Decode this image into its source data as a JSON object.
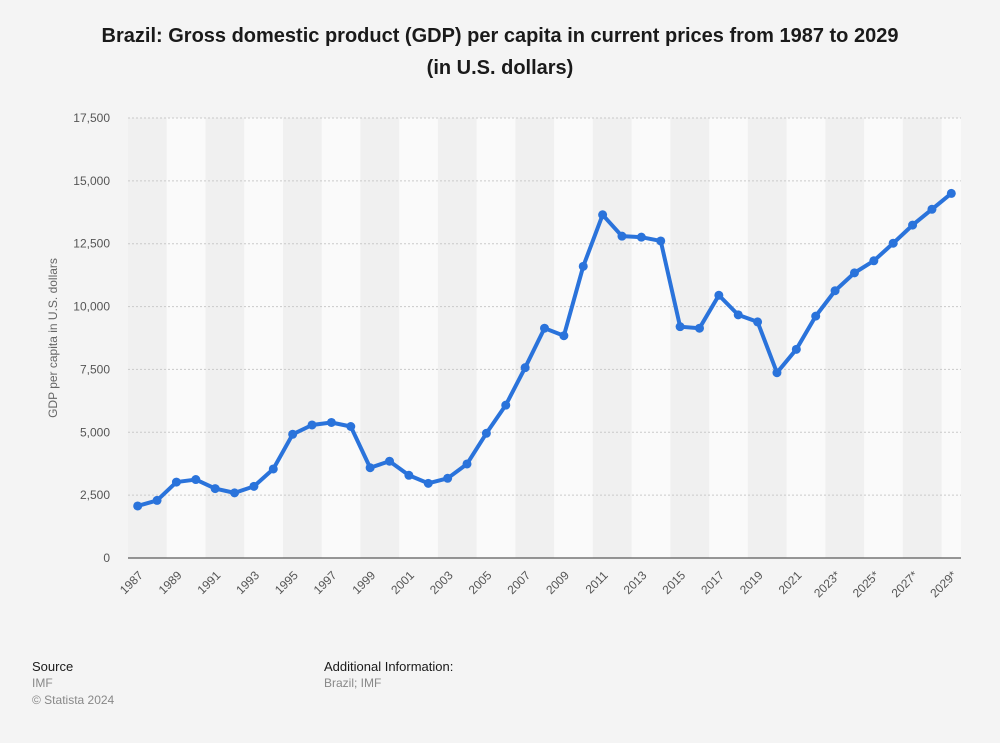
{
  "chart_data": {
    "type": "line",
    "title_line1": "Brazil: Gross domestic product (GDP) per capita in current prices from 1987 to 2029",
    "title_line2": "(in U.S. dollars)",
    "ylabel": "GDP per capita in U.S. dollars",
    "xlabel": "",
    "ylim": [
      0,
      17500
    ],
    "yticks": [
      0,
      2500,
      5000,
      7500,
      10000,
      12500,
      15000,
      17500
    ],
    "ytick_labels": [
      "0",
      "2,500",
      "5,000",
      "7,500",
      "10,000",
      "12,500",
      "15,000",
      "17,500"
    ],
    "categories": [
      "1987",
      "1988",
      "1989",
      "1990",
      "1991",
      "1992",
      "1993",
      "1994",
      "1995",
      "1996",
      "1997",
      "1998",
      "1999",
      "2000",
      "2001",
      "2002",
      "2003",
      "2004",
      "2005",
      "2006",
      "2007",
      "2008",
      "2009",
      "2010",
      "2011",
      "2012",
      "2013",
      "2014",
      "2015",
      "2016",
      "2017",
      "2018",
      "2019",
      "2020",
      "2021",
      "2022",
      "2023*",
      "2024*",
      "2025*",
      "2026*",
      "2027*",
      "2028*",
      "2029*"
    ],
    "xtick_labels_shown": [
      "1987",
      "1989",
      "1991",
      "1993",
      "1995",
      "1997",
      "1999",
      "2001",
      "2003",
      "2005",
      "2007",
      "2009",
      "2011",
      "2013",
      "2015",
      "2017",
      "2019",
      "2021",
      "2023*",
      "2025*",
      "2027*",
      "2029*"
    ],
    "series": [
      {
        "name": "GDP per capita",
        "color": "#2a73db",
        "values": [
          2070,
          2290,
          3020,
          3120,
          2760,
          2590,
          2850,
          3540,
          4920,
          5290,
          5390,
          5230,
          3590,
          3850,
          3290,
          2970,
          3170,
          3740,
          4960,
          6080,
          7570,
          9140,
          8840,
          11600,
          13650,
          12800,
          12760,
          12610,
          9200,
          9140,
          10450,
          9670,
          9390,
          7370,
          8300,
          9620,
          10630,
          11340,
          11820,
          12520,
          13240,
          13870,
          14500
        ]
      }
    ],
    "grid": true
  },
  "footer": {
    "source_heading": "Source",
    "source_value": "IMF",
    "copyright": "© Statista 2024",
    "additional_heading": "Additional Information:",
    "additional_value": "Brazil; IMF"
  },
  "colors": {
    "background": "#f4f4f4",
    "band_light": "#fafafa",
    "band_dark": "#f0f0f0",
    "grid": "#c9c9c9",
    "line": "#2a73db"
  }
}
